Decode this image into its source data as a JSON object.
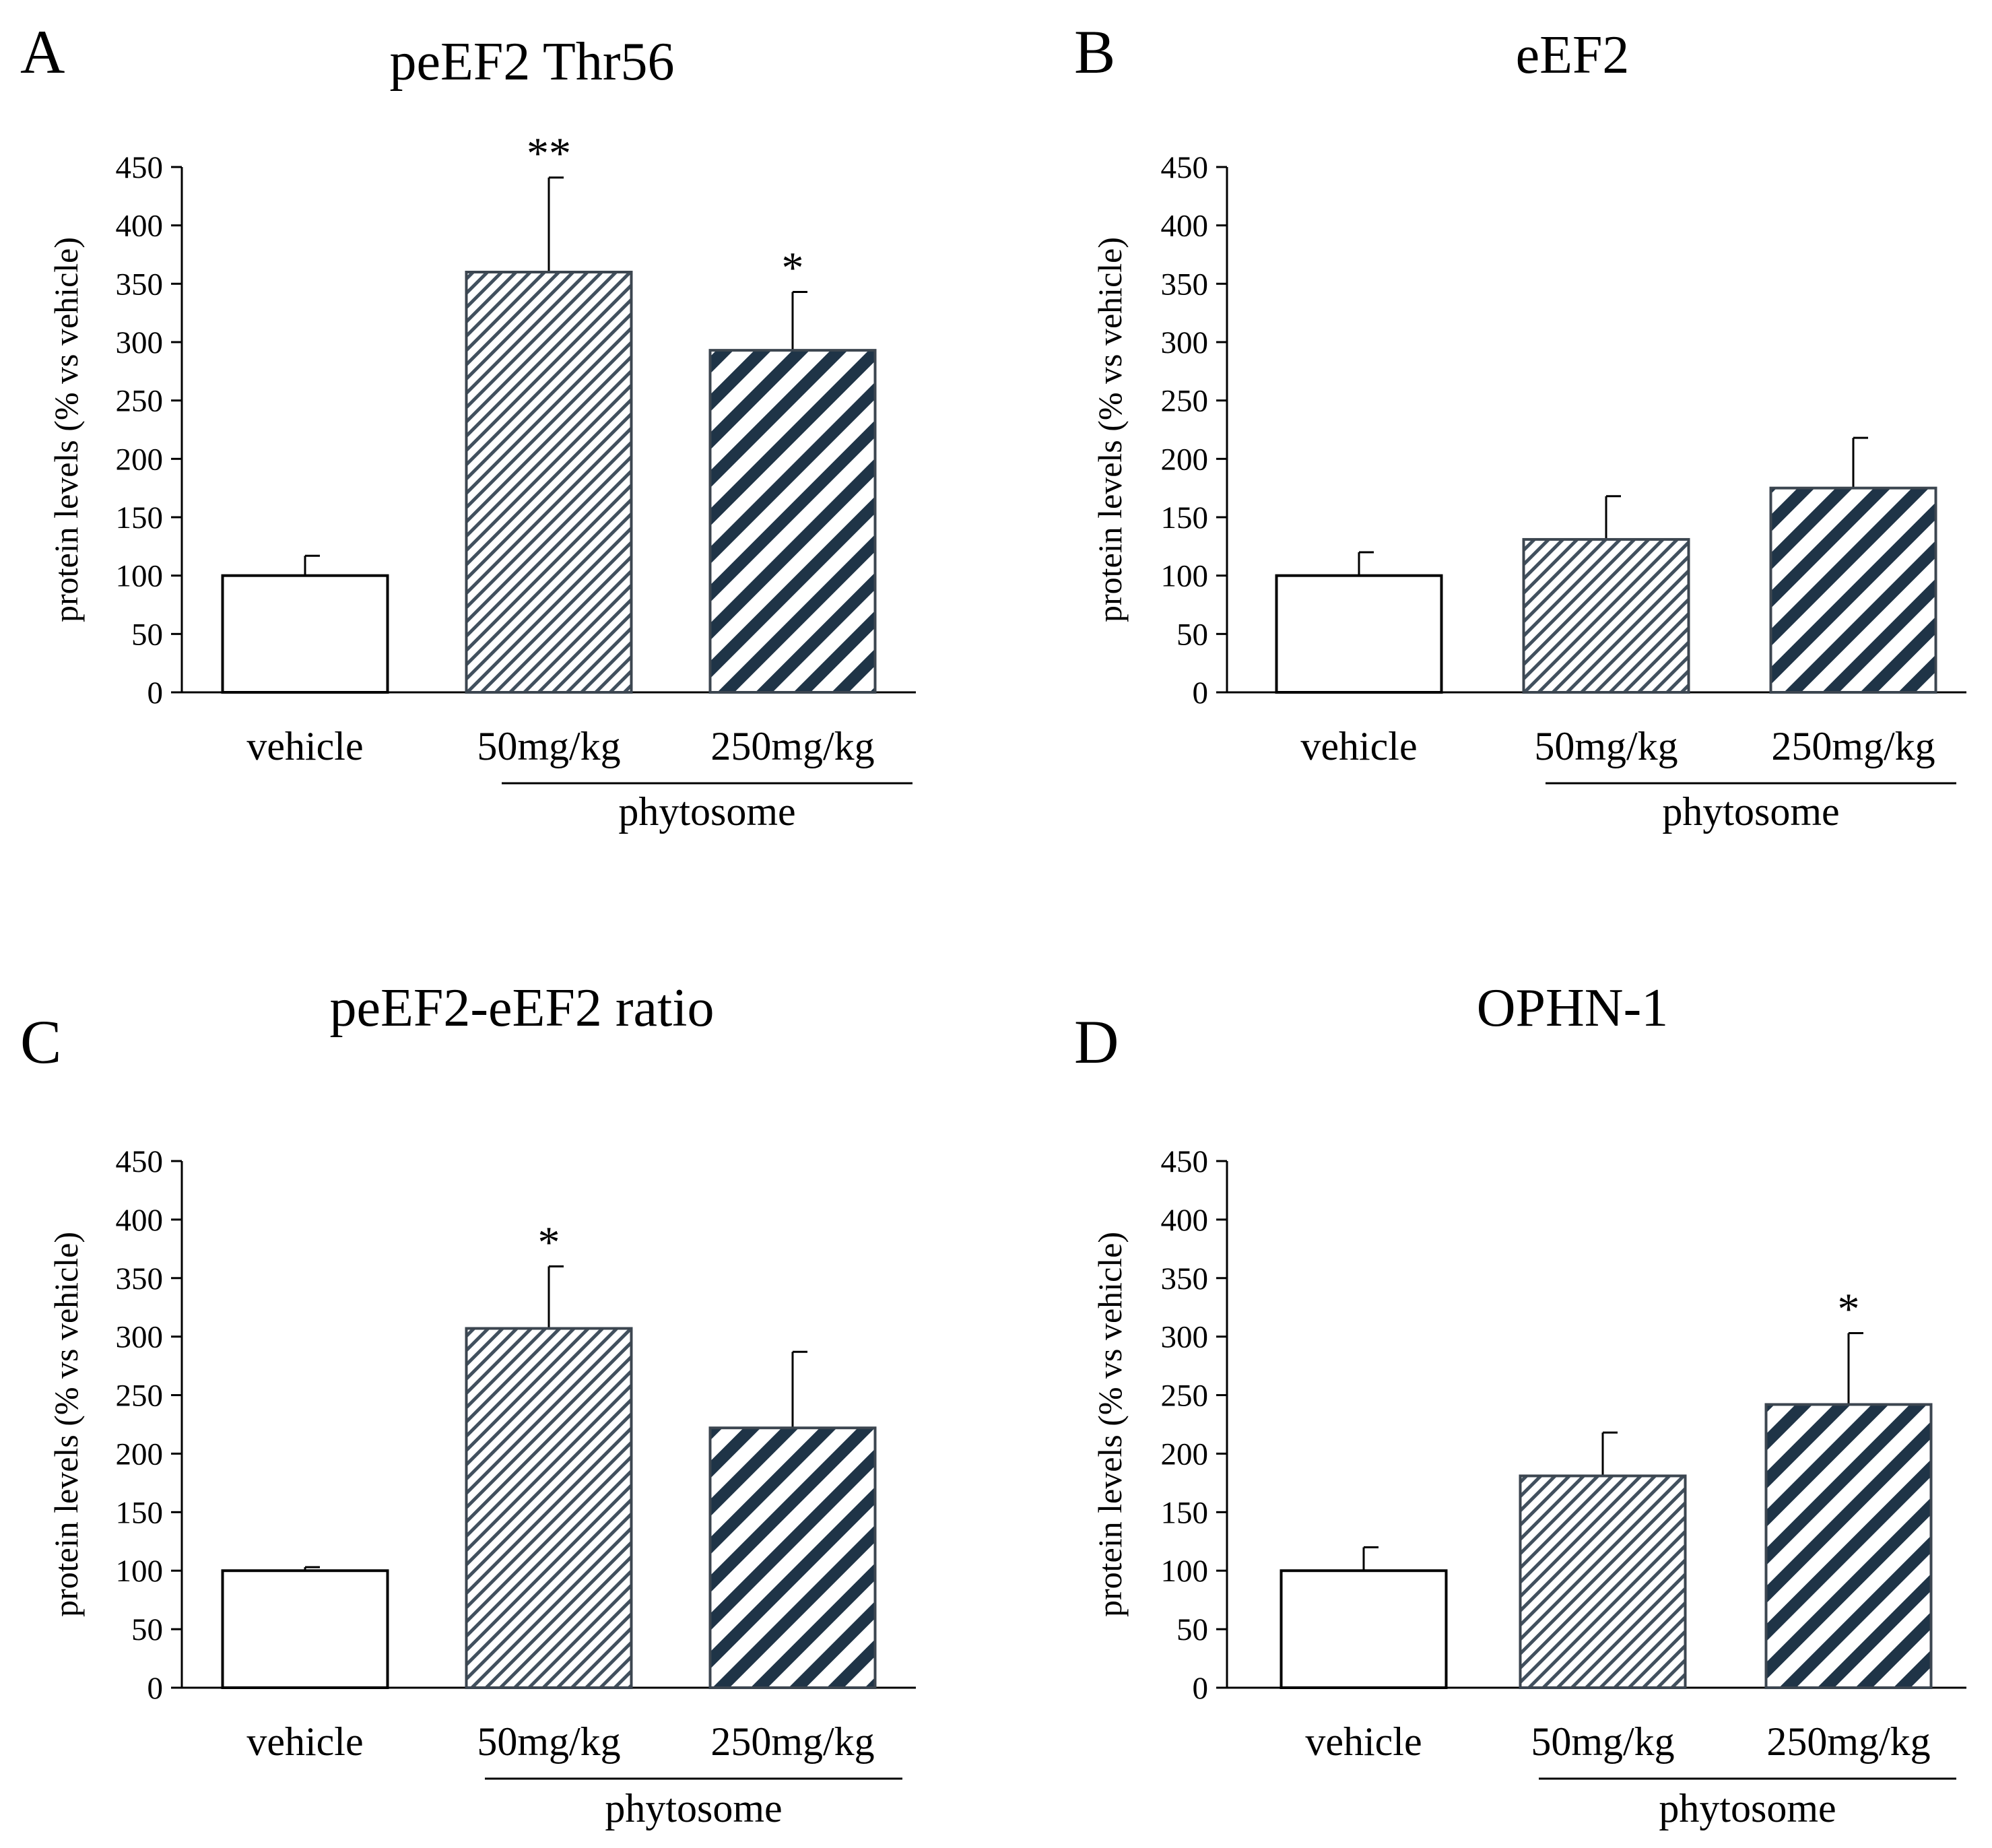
{
  "figure": {
    "colors": {
      "axis": "#000000",
      "bar_outline": "#3c4650",
      "hatch_dark": "#1f3447",
      "hatch_light": "#41505e",
      "vehicle_fill": "#ffffff"
    }
  },
  "chart_data": [
    {
      "type": "bar",
      "panel": "A",
      "title": "peEF2 Thr56",
      "xlabel": "",
      "ylabel": "protein levels (% vs vehicle)",
      "ylim": [
        0,
        450
      ],
      "yticks": [
        "0",
        "50",
        "100",
        "150",
        "200",
        "250",
        "300",
        "350",
        "400",
        "450"
      ],
      "categories": [
        "vehicle",
        "50mg/kg",
        "250mg/kg"
      ],
      "group_label": "phytosome",
      "values": [
        100,
        360,
        293
      ],
      "errors": [
        17,
        81,
        50
      ],
      "significance": [
        "",
        "**",
        "*"
      ]
    },
    {
      "type": "bar",
      "panel": "B",
      "title": "eEF2",
      "xlabel": "",
      "ylabel": "protein levels (% vs vehicle)",
      "ylim": [
        0,
        450
      ],
      "yticks": [
        "0",
        "50",
        "100",
        "150",
        "200",
        "250",
        "300",
        "350",
        "400",
        "450"
      ],
      "categories": [
        "vehicle",
        "50mg/kg",
        "250mg/kg"
      ],
      "group_label": "phytosome",
      "values": [
        100,
        131,
        175
      ],
      "errors": [
        20,
        37,
        43
      ],
      "significance": [
        "",
        "",
        ""
      ]
    },
    {
      "type": "bar",
      "panel": "C",
      "title": "peEF2-eEF2 ratio",
      "xlabel": "",
      "ylabel": "protein levels (% vs vehicle)",
      "ylim": [
        0,
        450
      ],
      "yticks": [
        "0",
        "50",
        "100",
        "150",
        "200",
        "250",
        "300",
        "350",
        "400",
        "450"
      ],
      "categories": [
        "vehicle",
        "50mg/kg",
        "250mg/kg"
      ],
      "group_label": "phytosome",
      "values": [
        100,
        307,
        222
      ],
      "errors": [
        3,
        53,
        65
      ],
      "significance": [
        "",
        "*",
        ""
      ]
    },
    {
      "type": "bar",
      "panel": "D",
      "title": "OPHN-1",
      "xlabel": "",
      "ylabel": "protein levels (% vs vehicle)",
      "ylim": [
        0,
        450
      ],
      "yticks": [
        "0",
        "50",
        "100",
        "150",
        "200",
        "250",
        "300",
        "350",
        "400",
        "450"
      ],
      "categories": [
        "vehicle",
        "50mg/kg",
        "250mg/kg"
      ],
      "group_label": "phytosome",
      "values": [
        100,
        181,
        242
      ],
      "errors": [
        20,
        37,
        61
      ],
      "significance": [
        "",
        "",
        "*"
      ]
    }
  ]
}
